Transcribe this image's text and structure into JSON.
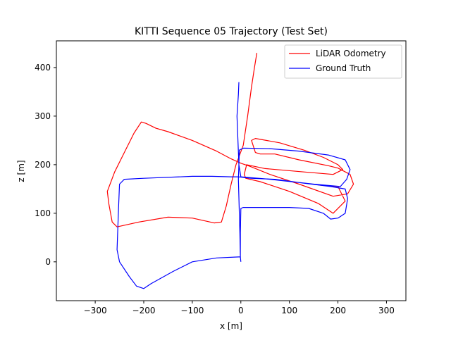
{
  "chart_data": {
    "type": "line",
    "title": "KITTI Sequence 05 Trajectory (Test Set)",
    "xlabel": "x [m]",
    "ylabel": "z [m]",
    "xlim": [
      -380,
      340
    ],
    "ylim": [
      -80,
      455
    ],
    "xticks": [
      -300,
      -200,
      -100,
      0,
      100,
      200,
      300
    ],
    "yticks": [
      0,
      100,
      200,
      300,
      400
    ],
    "grid": false,
    "legend_position": "top-right",
    "series": [
      {
        "name": "LiDAR Odometry",
        "color": "#ff0000",
        "points": [
          [
            33,
            430
          ],
          [
            28,
            400
          ],
          [
            22,
            360
          ],
          [
            14,
            300
          ],
          [
            5,
            240
          ],
          [
            -10,
            200
          ],
          [
            -20,
            160
          ],
          [
            -30,
            115
          ],
          [
            -40,
            82
          ],
          [
            -55,
            80
          ],
          [
            -100,
            90
          ],
          [
            -150,
            92
          ],
          [
            -210,
            82
          ],
          [
            -255,
            72
          ],
          [
            -265,
            82
          ],
          [
            -272,
            120
          ],
          [
            -275,
            145
          ],
          [
            -260,
            185
          ],
          [
            -240,
            225
          ],
          [
            -220,
            265
          ],
          [
            -205,
            288
          ],
          [
            -195,
            285
          ],
          [
            -175,
            275
          ],
          [
            -150,
            268
          ],
          [
            -100,
            250
          ],
          [
            -50,
            228
          ],
          [
            -20,
            212
          ],
          [
            0,
            203
          ],
          [
            20,
            196
          ],
          [
            60,
            180
          ],
          [
            120,
            160
          ],
          [
            190,
            135
          ],
          [
            220,
            140
          ],
          [
            232,
            160
          ],
          [
            225,
            180
          ],
          [
            200,
            193
          ],
          [
            180,
            198
          ],
          [
            120,
            210
          ],
          [
            70,
            222
          ],
          [
            40,
            222
          ],
          [
            30,
            225
          ],
          [
            22,
            250
          ],
          [
            30,
            254
          ],
          [
            80,
            245
          ],
          [
            130,
            230
          ],
          [
            170,
            215
          ],
          [
            200,
            200
          ],
          [
            210,
            190
          ],
          [
            190,
            180
          ],
          [
            130,
            185
          ],
          [
            50,
            192
          ],
          [
            12,
            200
          ],
          [
            7,
            180
          ],
          [
            10,
            172
          ],
          [
            40,
            165
          ],
          [
            100,
            145
          ],
          [
            160,
            120
          ],
          [
            190,
            100
          ],
          [
            215,
            125
          ],
          [
            200,
            155
          ],
          [
            160,
            158
          ]
        ]
      },
      {
        "name": "Ground Truth",
        "color": "#0000ff",
        "points": [
          [
            0,
            0
          ],
          [
            -1,
            10
          ],
          [
            -5,
            10
          ],
          [
            -50,
            8
          ],
          [
            -100,
            0
          ],
          [
            -140,
            -20
          ],
          [
            -185,
            -45
          ],
          [
            -200,
            -55
          ],
          [
            -215,
            -50
          ],
          [
            -230,
            -30
          ],
          [
            -250,
            0
          ],
          [
            -255,
            25
          ],
          [
            -252,
            110
          ],
          [
            -250,
            160
          ],
          [
            -240,
            170
          ],
          [
            -200,
            172
          ],
          [
            -100,
            176
          ],
          [
            -60,
            176
          ],
          [
            -20,
            175
          ],
          [
            -5,
            175
          ],
          [
            20,
            172
          ],
          [
            70,
            170
          ],
          [
            130,
            162
          ],
          [
            185,
            155
          ],
          [
            215,
            150
          ],
          [
            220,
            130
          ],
          [
            215,
            100
          ],
          [
            200,
            90
          ],
          [
            185,
            88
          ],
          [
            170,
            100
          ],
          [
            140,
            110
          ],
          [
            100,
            112
          ],
          [
            50,
            112
          ],
          [
            5,
            112
          ],
          [
            0,
            110
          ],
          [
            -1,
            60
          ],
          [
            -1,
            10
          ],
          [
            -2,
            60
          ],
          [
            -5,
            170
          ],
          [
            -4,
            200
          ],
          [
            -3,
            230
          ],
          [
            5,
            234
          ],
          [
            60,
            233
          ],
          [
            120,
            228
          ],
          [
            180,
            220
          ],
          [
            215,
            210
          ],
          [
            225,
            190
          ],
          [
            218,
            170
          ],
          [
            205,
            155
          ],
          [
            150,
            160
          ],
          [
            60,
            170
          ],
          [
            0,
            175
          ],
          [
            -4,
            200
          ],
          [
            -8,
            300
          ],
          [
            -5,
            345
          ],
          [
            -4,
            370
          ]
        ]
      }
    ]
  }
}
